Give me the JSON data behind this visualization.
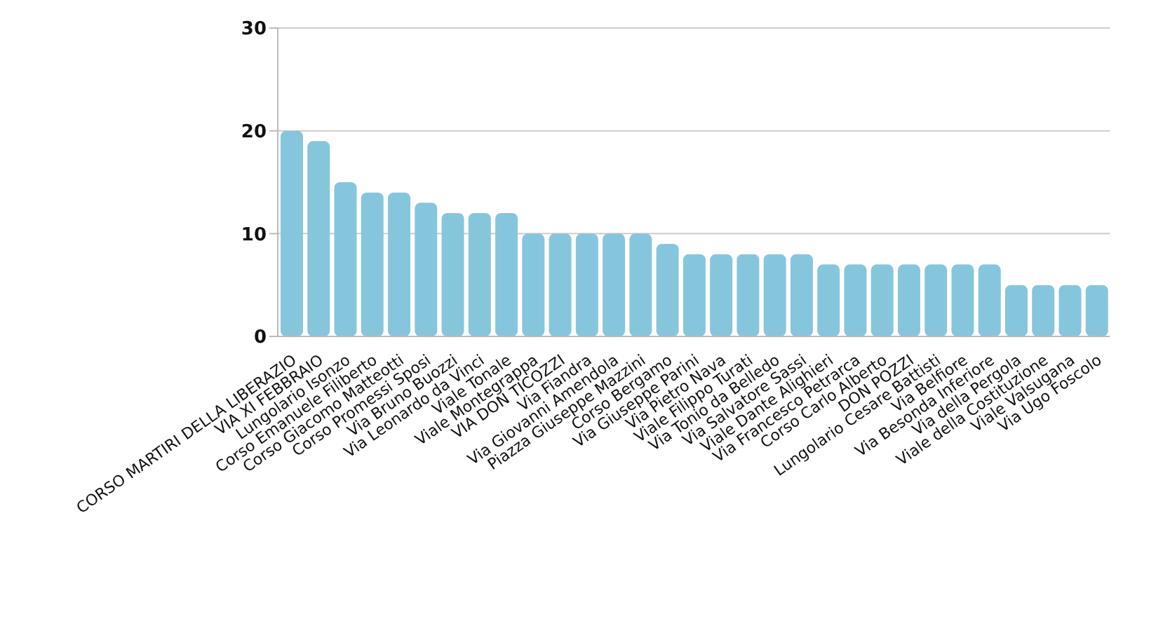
{
  "chart_data": {
    "type": "bar",
    "categories": [
      "CORSO MARTIRI DELLA LIBERAZIO",
      "VIA XI FEBBRAIO",
      "Lungolario Isonzo",
      "Corso Emanuele Filiberto",
      "Corso Giacomo Matteotti",
      "Corso Promessi Sposi",
      "Via Bruno Buozzi",
      "Via Leonardo da Vinci",
      "Viale Tonale",
      "Viale Montegrappa",
      "VIA DON TICOZZI",
      "Via Fiandra",
      "Via Giovanni Amendola",
      "Piazza Giuseppe Mazzini",
      "Corso Bergamo",
      "Via Giuseppe Parini",
      "Via Pietro Nava",
      "Viale Filippo Turati",
      "Via Tonio da Belledo",
      "Via Salvatore Sassi",
      "Viale Dante Alighieri",
      "Via Francesco Petrarca",
      "Corso Carlo Alberto",
      "DON POZZI",
      "Lungolario Cesare Battisti",
      "Via Belfiore",
      "Via Besonda Inferiore",
      "Via della Pergola",
      "Viale della Costituzione",
      "Viale Valsugana",
      "Via Ugo Foscolo"
    ],
    "values": [
      20,
      19,
      15,
      14,
      14,
      13,
      12,
      12,
      12,
      10,
      10,
      10,
      10,
      10,
      9,
      8,
      8,
      8,
      8,
      8,
      7,
      7,
      7,
      7,
      7,
      7,
      7,
      5,
      5,
      5,
      5
    ],
    "color": "#86c6dc",
    "ylim": [
      0,
      30
    ],
    "yticks": [
      0,
      10,
      20,
      30
    ],
    "grid": "y"
  }
}
